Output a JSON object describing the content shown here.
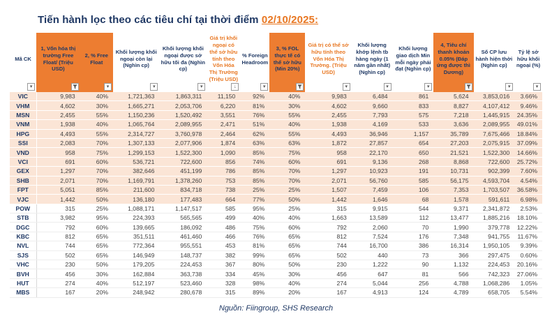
{
  "title": {
    "prefix": "Tiến hành lọc theo  các tiêu chí tại thời điểm ",
    "date": "02/10/2025:"
  },
  "source": "Nguồn: Fiingroup, SHS  Research",
  "colors": {
    "accent_orange": "#ED7D31",
    "navy": "#1F3864",
    "row_highlight": "#FBE5D6"
  },
  "table": {
    "columns": [
      {
        "label": "Mã CK",
        "style": "normal",
        "icon": "dropdown"
      },
      {
        "label": "1, Vốn hóa thị trường Free Float/ (Triệu USD)",
        "style": "orange-bg",
        "icon": "funnel"
      },
      {
        "label": "2, % Free Float",
        "style": "orange-bg",
        "icon": "dropdown"
      },
      {
        "label": "Khối lượng khối ngoại còn lại (Nghìn cp)",
        "style": "normal",
        "icon": "dropdown"
      },
      {
        "label": "Khối lượng khối ngoại được sở hữu tối đa (Nghìn cp)",
        "style": "normal",
        "icon": "dropdown"
      },
      {
        "label": "Giá trị khối ngoại có thể sở hữu tính theo Vốn Hóa Thị Trường (Triệu USD)",
        "style": "orange-text",
        "icon": "sort-desc"
      },
      {
        "label": "% Foreign Headroom",
        "style": "normal",
        "icon": "dropdown"
      },
      {
        "label": "3, % FOL thực tế có thể sở hữu (Min 20%)",
        "style": "orange-bg",
        "icon": "funnel"
      },
      {
        "label": "Giá trị có thể sở hữu tính theo Vốn Hóa Thị Trường. (Triệu USD)",
        "style": "orange-text",
        "icon": "dropdown"
      },
      {
        "label": "Khối lượng khớp lệnh tb hàng ngày (1 năm gần nhất) (Nghìn cp)",
        "style": "normal",
        "icon": "dropdown"
      },
      {
        "label": "Khối lượng giao dịch Min mỗi ngày phải đạt (Nghìn cp)",
        "style": "normal",
        "icon": "dropdown"
      },
      {
        "label": "4, Tiêu chí thanh khoản 0.05% (Đáp ứng được thì Dương)",
        "style": "orange-bg",
        "icon": "funnel"
      },
      {
        "label": "Số CP lưu hành hiện thời (Nghìn cp)",
        "style": "normal",
        "icon": "dropdown"
      },
      {
        "label": "Tỷ lệ sở hữu khối ngoại (%)",
        "style": "normal",
        "icon": "dropdown"
      }
    ],
    "rows": [
      {
        "ticker": "VIC",
        "group": "h",
        "values": [
          "9,983",
          "40%",
          "1,721,363",
          "1,863,311",
          "11,150",
          "92%",
          "40%",
          "9,983",
          "6,484",
          "861",
          "5,624",
          "3,853,016",
          "3.66%"
        ]
      },
      {
        "ticker": "VHM",
        "group": "h",
        "values": [
          "4,602",
          "30%",
          "1,665,271",
          "2,053,706",
          "6,220",
          "81%",
          "30%",
          "4,602",
          "9,660",
          "833",
          "8,827",
          "4,107,412",
          "9.46%"
        ]
      },
      {
        "ticker": "MSN",
        "group": "h",
        "values": [
          "2,455",
          "55%",
          "1,150,236",
          "1,520,492",
          "3,551",
          "76%",
          "55%",
          "2,455",
          "7,793",
          "575",
          "7,218",
          "1,445,915",
          "24.35%"
        ]
      },
      {
        "ticker": "VNM",
        "group": "h",
        "values": [
          "1,938",
          "40%",
          "1,065,764",
          "2,089,955",
          "2,471",
          "51%",
          "40%",
          "1,938",
          "4,169",
          "533",
          "3,636",
          "2,089,955",
          "49.01%"
        ]
      },
      {
        "ticker": "HPG",
        "group": "h",
        "values": [
          "4,493",
          "55%",
          "2,314,727",
          "3,760,978",
          "2,464",
          "62%",
          "55%",
          "4,493",
          "36,946",
          "1,157",
          "35,789",
          "7,675,466",
          "18.84%"
        ]
      },
      {
        "ticker": "SSI",
        "group": "h",
        "values": [
          "2,083",
          "70%",
          "1,307,133",
          "2,077,906",
          "1,874",
          "63%",
          "63%",
          "1,872",
          "27,857",
          "654",
          "27,203",
          "2,075,915",
          "37.09%"
        ]
      },
      {
        "ticker": "VND",
        "group": "h",
        "values": [
          "958",
          "75%",
          "1,299,153",
          "1,522,300",
          "1,090",
          "85%",
          "75%",
          "958",
          "22,170",
          "650",
          "21,521",
          "1,522,300",
          "14.66%"
        ]
      },
      {
        "ticker": "VCI",
        "group": "h",
        "values": [
          "691",
          "60%",
          "536,721",
          "722,600",
          "856",
          "74%",
          "60%",
          "691",
          "9,136",
          "268",
          "8,868",
          "722,600",
          "25.72%"
        ]
      },
      {
        "ticker": "GEX",
        "group": "h",
        "values": [
          "1,297",
          "70%",
          "382,646",
          "451,199",
          "786",
          "85%",
          "70%",
          "1,297",
          "10,923",
          "191",
          "10,731",
          "902,399",
          "7.60%"
        ]
      },
      {
        "ticker": "SHB",
        "group": "h",
        "values": [
          "2,071",
          "70%",
          "1,169,791",
          "1,378,260",
          "753",
          "85%",
          "70%",
          "2,071",
          "56,760",
          "585",
          "56,175",
          "4,593,704",
          "4.54%"
        ]
      },
      {
        "ticker": "FPT",
        "group": "h",
        "values": [
          "5,051",
          "85%",
          "211,600",
          "834,718",
          "738",
          "25%",
          "25%",
          "1,507",
          "7,459",
          "106",
          "7,353",
          "1,703,507",
          "36.58%"
        ]
      },
      {
        "ticker": "VJC",
        "group": "h",
        "values": [
          "1,442",
          "50%",
          "136,180",
          "177,483",
          "664",
          "77%",
          "50%",
          "1,442",
          "1,646",
          "68",
          "1,578",
          "591,611",
          "6.98%"
        ]
      },
      {
        "ticker": "POW",
        "group": "p",
        "values": [
          "315",
          "25%",
          "1,088,171",
          "1,147,517",
          "585",
          "95%",
          "25%",
          "315",
          "9,915",
          "544",
          "9,371",
          "2,341,872",
          "2.53%"
        ]
      },
      {
        "ticker": "STB",
        "group": "p",
        "values": [
          "3,982",
          "95%",
          "224,393",
          "565,565",
          "499",
          "40%",
          "40%",
          "1,663",
          "13,589",
          "112",
          "13,477",
          "1,885,216",
          "18.10%"
        ]
      },
      {
        "ticker": "DGC",
        "group": "p",
        "values": [
          "792",
          "60%",
          "139,665",
          "186,092",
          "486",
          "75%",
          "60%",
          "792",
          "2,060",
          "70",
          "1,990",
          "379,778",
          "12.22%"
        ]
      },
      {
        "ticker": "KBC",
        "group": "p",
        "values": [
          "812",
          "65%",
          "351,511",
          "461,460",
          "466",
          "76%",
          "65%",
          "812",
          "7,524",
          "176",
          "7,348",
          "941,755",
          "11.67%"
        ]
      },
      {
        "ticker": "NVL",
        "group": "p",
        "values": [
          "744",
          "65%",
          "772,364",
          "955,551",
          "453",
          "81%",
          "65%",
          "744",
          "16,700",
          "386",
          "16,314",
          "1,950,105",
          "9.39%"
        ]
      },
      {
        "ticker": "SJS",
        "group": "p",
        "values": [
          "502",
          "65%",
          "146,949",
          "148,737",
          "382",
          "99%",
          "65%",
          "502",
          "440",
          "73",
          "366",
          "297,475",
          "0.60%"
        ]
      },
      {
        "ticker": "VHC",
        "group": "p",
        "values": [
          "230",
          "50%",
          "179,205",
          "224,453",
          "367",
          "80%",
          "50%",
          "230",
          "1,222",
          "90",
          "1,132",
          "224,453",
          "20.16%"
        ]
      },
      {
        "ticker": "BVH",
        "group": "p",
        "values": [
          "456",
          "30%",
          "162,884",
          "363,738",
          "334",
          "45%",
          "30%",
          "456",
          "647",
          "81",
          "566",
          "742,323",
          "27.06%"
        ]
      },
      {
        "ticker": "HUT",
        "group": "p",
        "values": [
          "274",
          "40%",
          "512,197",
          "523,460",
          "328",
          "98%",
          "40%",
          "274",
          "5,044",
          "256",
          "4,788",
          "1,068,286",
          "1.05%"
        ]
      },
      {
        "ticker": "MBS",
        "group": "p",
        "values": [
          "167",
          "20%",
          "248,942",
          "280,678",
          "315",
          "89%",
          "20%",
          "167",
          "4,913",
          "124",
          "4,789",
          "658,705",
          "5.54%"
        ]
      }
    ]
  }
}
